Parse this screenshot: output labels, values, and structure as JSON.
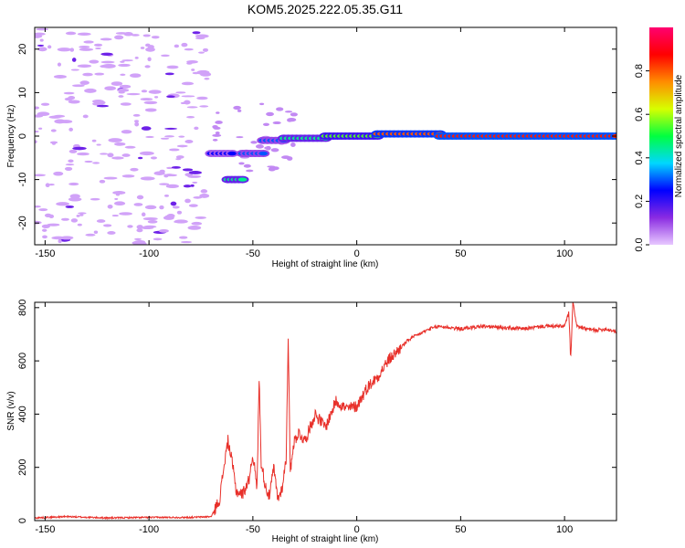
{
  "chart_data": [
    {
      "type": "heatmap",
      "title": "KOM5.2025.222.05.35.G11",
      "xlabel": "Height of straight line (km)",
      "ylabel": "Frequency (Hz)",
      "xlim": [
        -155,
        125
      ],
      "ylim": [
        -25,
        25
      ],
      "x_ticks": [
        -150,
        -100,
        -50,
        0,
        50,
        100
      ],
      "y_ticks": [
        -20,
        -10,
        0,
        10,
        20
      ],
      "colorbar": {
        "label": "Normalized spectral amplitude",
        "range": [
          0,
          1
        ],
        "ticks": [
          0.0,
          0.2,
          0.4,
          0.6,
          0.8
        ],
        "tick_labels": [
          "0.0",
          "0.2",
          "0.4",
          "0.6",
          "0.8"
        ],
        "stops": [
          "#e8c8ff",
          "#8a2be2",
          "#0000ff",
          "#00d7ff",
          "#00ff40",
          "#d7ff00",
          "#ff8c00",
          "#ff0000",
          "#ff0070"
        ]
      },
      "ridge": [
        {
          "x_start": -70,
          "x_end": -60,
          "freq": -4,
          "amp": 0.25
        },
        {
          "x_start": -62,
          "x_end": -55,
          "freq": -10,
          "amp": 0.45
        },
        {
          "x_start": -55,
          "x_end": -45,
          "freq": -4,
          "amp": 0.3
        },
        {
          "x_start": -45,
          "x_end": -35,
          "freq": -1,
          "amp": 0.3
        },
        {
          "x_start": -35,
          "x_end": -15,
          "freq": -0.5,
          "amp": 0.45
        },
        {
          "x_start": -15,
          "x_end": 10,
          "freq": 0,
          "amp": 0.55
        },
        {
          "x_start": 10,
          "x_end": 40,
          "freq": 0.5,
          "amp": 0.8
        },
        {
          "x_start": 40,
          "x_end": 125,
          "freq": 0,
          "amp": 0.85
        }
      ]
    },
    {
      "type": "line",
      "title": "",
      "xlabel": "Height of straight line (km)",
      "ylabel": "SNR (v/v)",
      "xlim": [
        -155,
        125
      ],
      "ylim": [
        0,
        820
      ],
      "x_ticks": [
        -150,
        -100,
        -50,
        0,
        50,
        100
      ],
      "y_ticks": [
        0,
        200,
        400,
        600,
        800
      ],
      "color": "#e8302a",
      "series": [
        {
          "name": "SNR",
          "x": [
            -155,
            -140,
            -120,
            -100,
            -80,
            -70,
            -66,
            -64,
            -62,
            -60,
            -58,
            -55,
            -52,
            -50,
            -48,
            -47,
            -46,
            -44,
            -42,
            -40,
            -38,
            -36,
            -34,
            -33,
            -32,
            -31,
            -30,
            -28,
            -25,
            -20,
            -15,
            -10,
            -5,
            0,
            5,
            10,
            15,
            20,
            25,
            30,
            35,
            40,
            50,
            60,
            70,
            80,
            90,
            100,
            102,
            103,
            104,
            106,
            110,
            115,
            120,
            125
          ],
          "values": [
            10,
            15,
            10,
            12,
            12,
            15,
            80,
            200,
            300,
            220,
            110,
            100,
            150,
            250,
            120,
            540,
            220,
            130,
            90,
            200,
            80,
            120,
            230,
            690,
            180,
            260,
            300,
            330,
            300,
            400,
            350,
            450,
            420,
            430,
            500,
            540,
            600,
            640,
            680,
            700,
            720,
            730,
            720,
            730,
            725,
            720,
            730,
            730,
            780,
            610,
            820,
            730,
            720,
            715,
            720,
            710
          ]
        }
      ]
    }
  ]
}
